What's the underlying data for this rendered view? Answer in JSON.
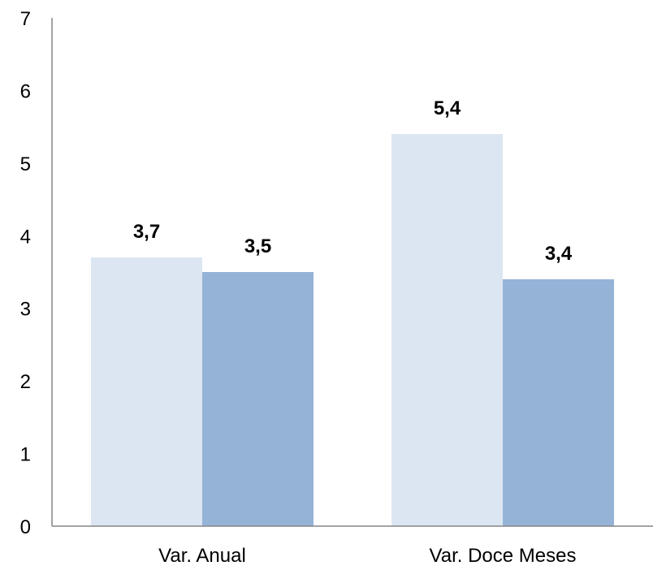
{
  "chart_data": {
    "type": "bar",
    "title": "",
    "xlabel": "",
    "ylabel": "",
    "categories": [
      "Var. Anual",
      "Var. Doce Meses"
    ],
    "series": [
      {
        "values": [
          3.7,
          5.4
        ],
        "labels": [
          "3,7",
          "5,4"
        ],
        "color": "#dce6f2"
      },
      {
        "values": [
          3.5,
          3.4
        ],
        "labels": [
          "3,5",
          "3,4"
        ],
        "color": "#95b3d7"
      }
    ],
    "ylim": [
      0,
      7
    ],
    "yticks": [
      0,
      1,
      2,
      3,
      4,
      5,
      6,
      7
    ],
    "ytick_labels": [
      "0",
      "1",
      "2",
      "3",
      "4",
      "5",
      "6",
      "7"
    ],
    "grid": false,
    "legend": "none"
  }
}
